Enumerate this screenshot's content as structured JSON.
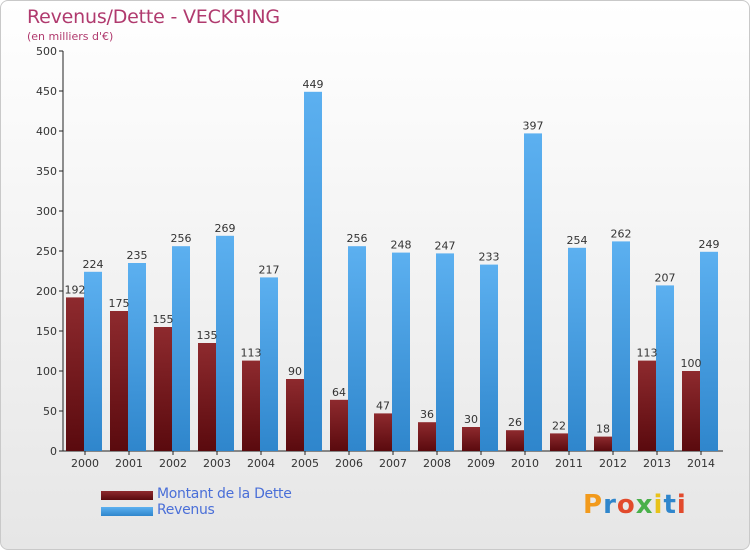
{
  "title": "Revenus/Dette - VECKRING",
  "subtitle": "(en milliers d'€)",
  "colors": {
    "debt": "#7b1418",
    "revenue": "#4ea3e6",
    "title": "#b03a6e",
    "legend_text": "#4a6fd8"
  },
  "chart_data": {
    "type": "bar",
    "title": "Revenus/Dette - VECKRING",
    "subtitle": "(en milliers d'€)",
    "categories": [
      "2000",
      "2001",
      "2002",
      "2003",
      "2004",
      "2005",
      "2006",
      "2007",
      "2008",
      "2009",
      "2010",
      "2011",
      "2012",
      "2013",
      "2014"
    ],
    "series": [
      {
        "name": "Montant de la Dette",
        "values": [
          192,
          175,
          155,
          135,
          113,
          90,
          64,
          47,
          36,
          30,
          26,
          22,
          18,
          113,
          100
        ]
      },
      {
        "name": "Revenus",
        "values": [
          224,
          235,
          256,
          269,
          217,
          449,
          256,
          248,
          247,
          233,
          397,
          254,
          262,
          207,
          249
        ]
      }
    ],
    "yticks": [
      "0",
      "50",
      "100",
      "150",
      "200",
      "250",
      "300",
      "350",
      "400",
      "450",
      "500"
    ],
    "ylim": [
      0,
      500
    ],
    "grid": false,
    "legend": "bottom-left"
  },
  "legend": {
    "items": [
      "Montant de la Dette",
      "Revenus"
    ]
  },
  "logo": {
    "text": "Proxiti"
  }
}
